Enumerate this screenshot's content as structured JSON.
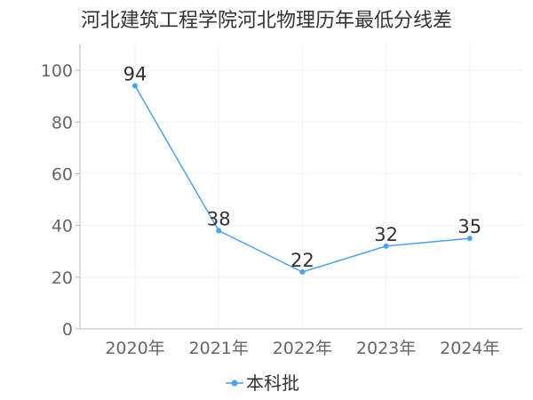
{
  "chart_data": {
    "type": "line",
    "title": "河北建筑工程学院河北物理历年最低分线差",
    "xlabel": "",
    "ylabel": "",
    "categories": [
      "2020年",
      "2021年",
      "2022年",
      "2023年",
      "2024年"
    ],
    "ylim": [
      0,
      110
    ],
    "yticks": [
      0,
      20,
      40,
      60,
      80,
      100
    ],
    "grid": true,
    "legend_position": "bottom-center",
    "series": [
      {
        "name": "本科批",
        "values": [
          94,
          38,
          22,
          32,
          35
        ],
        "color": "#4aa3f0"
      }
    ]
  }
}
